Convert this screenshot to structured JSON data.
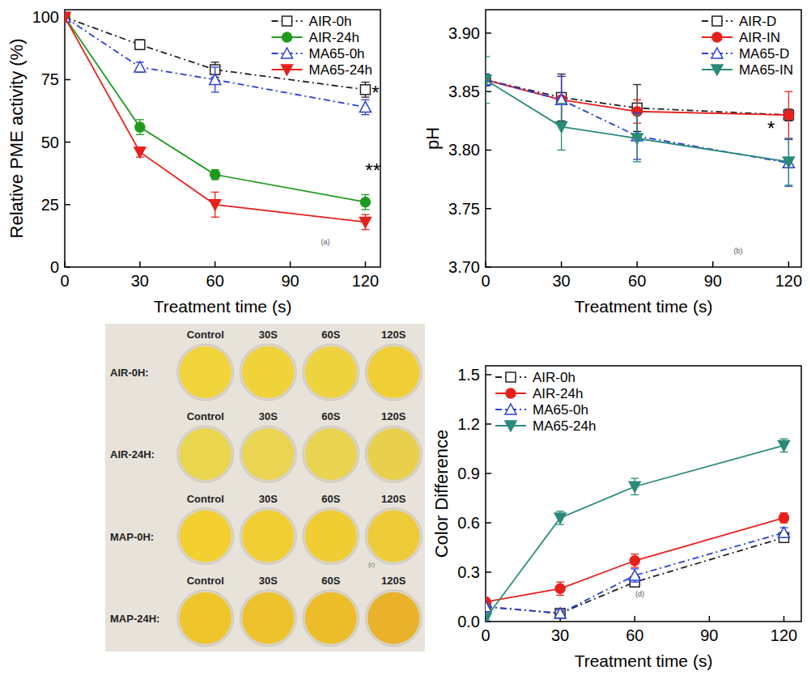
{
  "chart_data": [
    {
      "type": "line",
      "x_label": "Treatment time (s)",
      "y_label": "Relative PME activity (%)",
      "x": [
        0,
        30,
        60,
        120
      ],
      "xlim": [
        0,
        126
      ],
      "xticks": [
        0,
        30,
        60,
        90,
        120
      ],
      "ylim": [
        0,
        103
      ],
      "yticks": [
        0,
        25,
        50,
        75,
        100
      ],
      "legend": "upper right",
      "series": [
        {
          "name": "AIR-0h",
          "color": "#222222",
          "marker": "square_open",
          "line_style": "dashdot",
          "values": [
            100,
            89,
            79,
            71
          ],
          "errors": [
            0.5,
            2,
            3,
            3
          ]
        },
        {
          "name": "AIR-24h",
          "color": "#1e9b1e",
          "marker": "circle",
          "line_style": "solid",
          "values": [
            100,
            56,
            37,
            26
          ],
          "errors": [
            0.5,
            3,
            2,
            3
          ]
        },
        {
          "name": "MA65-0h",
          "color": "#2a3fd6",
          "marker": "triangle_open",
          "line_style": "dashdot",
          "values": [
            100,
            80,
            75,
            64
          ],
          "errors": [
            0.5,
            2,
            5,
            3
          ]
        },
        {
          "name": "MA65-24h",
          "color": "#e8201c",
          "marker": "triangle_down",
          "line_style": "solid",
          "values": [
            100,
            46,
            25,
            18
          ],
          "errors": [
            0.5,
            2,
            5,
            3
          ]
        }
      ],
      "annotations": [
        {
          "text": "*",
          "x": 124,
          "y": 67
        },
        {
          "text": "**",
          "x": 123,
          "y": 36
        },
        {
          "text": "(a)",
          "x": 104,
          "y": 9
        }
      ]
    },
    {
      "type": "line",
      "x_label": "Treatment time (s)",
      "y_label": "pH",
      "x": [
        0,
        30,
        60,
        120
      ],
      "xlim": [
        0,
        125
      ],
      "xticks": [
        0,
        30,
        60,
        90,
        120
      ],
      "ylim": [
        3.7,
        3.92
      ],
      "yticks": [
        {
          "value": 3.7,
          "label": "3.70"
        },
        3.75,
        {
          "value": 3.8,
          "label": "3.80"
        },
        3.85,
        {
          "value": 3.9,
          "label": "3.90"
        }
      ],
      "legend": "upper right",
      "series": [
        {
          "name": "AIR-D",
          "color": "#222222",
          "marker": "square_open",
          "line_style": "dashdot",
          "values": [
            3.86,
            3.845,
            3.836,
            3.83
          ],
          "errors": [
            0.005,
            0.02,
            0.02,
            0.005
          ]
        },
        {
          "name": "AIR-IN",
          "color": "#e8201c",
          "marker": "circle",
          "line_style": "solid",
          "values": [
            3.86,
            3.843,
            3.833,
            3.83
          ],
          "errors": [
            0.005,
            0.02,
            0.01,
            0.02
          ]
        },
        {
          "name": "MA65-D",
          "color": "#2a3fd6",
          "marker": "triangle_open",
          "line_style": "dashdot",
          "values": [
            3.86,
            3.843,
            3.812,
            3.789
          ],
          "errors": [
            0.005,
            0.02,
            0.02,
            0.02
          ]
        },
        {
          "name": "MA65-IN",
          "color": "#2a8a7a",
          "marker": "triangle_down",
          "line_style": "solid",
          "values": [
            3.86,
            3.82,
            3.81,
            3.79
          ],
          "errors": [
            0.02,
            0.02,
            0.02,
            0.02
          ]
        }
      ],
      "annotations": [
        {
          "text": "*",
          "x": 113,
          "y": 3.813
        },
        {
          "text": "(b)",
          "x": 100,
          "y": 3.712
        }
      ]
    },
    {
      "type": "line",
      "x_label": "Treatment time (s)",
      "y_label": "Color Difference",
      "x": [
        0,
        30,
        60,
        120
      ],
      "xlim": [
        0,
        127
      ],
      "xticks": [
        0,
        30,
        60,
        90,
        120
      ],
      "ylim": [
        0,
        1.554
      ],
      "yticks": [
        {
          "value": 0,
          "label": "0.0"
        },
        0.3,
        0.6,
        0.9,
        1.2,
        1.5
      ],
      "legend": "upper left",
      "series": [
        {
          "name": "AIR-0h",
          "color": "#222222",
          "marker": "square_open",
          "line_style": "dashdot",
          "values": [
            0.09,
            0.05,
            0.24,
            0.51
          ],
          "errors": [
            0.01,
            0.02,
            0.03,
            0.03
          ]
        },
        {
          "name": "AIR-24h",
          "color": "#e8201c",
          "marker": "circle",
          "line_style": "solid",
          "values": [
            0.12,
            0.2,
            0.37,
            0.63
          ],
          "errors": [
            0.02,
            0.04,
            0.04,
            0.03
          ]
        },
        {
          "name": "MA65-0h",
          "color": "#2a3fd6",
          "marker": "triangle_open",
          "line_style": "dashdot",
          "values": [
            0.09,
            0.05,
            0.28,
            0.54
          ],
          "errors": [
            0.01,
            0.02,
            0.04,
            0.03
          ]
        },
        {
          "name": "MA65-24h",
          "color": "#2a8a7a",
          "marker": "triangle_down",
          "line_style": "solid",
          "values": [
            0.02,
            0.63,
            0.82,
            1.07
          ],
          "errors": [
            0.01,
            0.04,
            0.05,
            0.04
          ]
        }
      ],
      "annotations": [
        {
          "text": "(d)",
          "x": 62,
          "y": 0.15
        }
      ]
    }
  ],
  "photo": {
    "rows": [
      {
        "label": "AIR-0H:",
        "columns": [
          "Control",
          "30S",
          "60S",
          "120S"
        ],
        "colors": [
          "#f1d43c",
          "#f0d23a",
          "#efd33e",
          "#f0cf36"
        ]
      },
      {
        "label": "AIR-24H:",
        "columns": [
          "Control",
          "30S",
          "60S",
          "120S"
        ],
        "colors": [
          "#ead54e",
          "#ead452",
          "#e9d350",
          "#e8d04c"
        ]
      },
      {
        "label": "MAP-0H:",
        "columns": [
          "Control",
          "30S",
          "60S",
          "120S"
        ],
        "colors": [
          "#f3d030",
          "#f1cf34",
          "#f0cd32",
          "#eecb38"
        ]
      },
      {
        "label": "MAP-24H:",
        "columns": [
          "Control",
          "30S",
          "60S",
          "120S"
        ],
        "colors": [
          "#efc52c",
          "#eec22c",
          "#edbd2a",
          "#eab22a"
        ]
      }
    ],
    "note": "(c)"
  }
}
